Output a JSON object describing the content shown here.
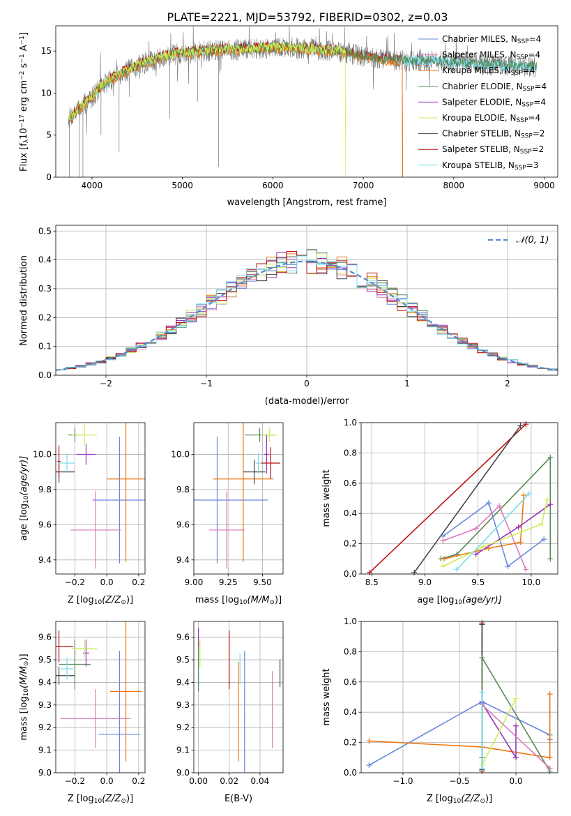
{
  "figure": {
    "title": "PLATE=2221, MJD=53792, FIBERID=0302, z=0.03"
  },
  "colors": {
    "chabrier_miles": "#6688dd",
    "salpeter_miles": "#dd77bb",
    "kroupa_miles": "#ee7711",
    "chabrier_elodie": "#558855",
    "salpeter_elodie": "#9933bb",
    "kroupa_elodie": "#ccee55",
    "chabrier_stelib": "#444444",
    "salpeter_stelib": "#bb1111",
    "kroupa_stelib": "#77ddee",
    "gauss": "#5588cc"
  },
  "chart_data": [
    {
      "type": "line",
      "xlabel": "wavelength [Angstrom, rest frame]",
      "ylabel": "Flux [f",
      "ylabel_sub": "λ",
      "ylabel_rest": "10",
      "ylabel_exp": "−17",
      "ylabel_tail": " erg cm",
      "ylabel_exp2": "−2",
      "ylabel_tail2": " s",
      "ylabel_exp3": "−1",
      "ylabel_tail3": " A",
      "ylabel_exp4": "−1",
      "ylabel_end": "]",
      "xlim": [
        3600,
        9150
      ],
      "ylim": [
        0,
        18
      ],
      "xticks": [
        "4000",
        "5000",
        "6000",
        "7000",
        "8000",
        "9000"
      ],
      "yticks": [
        "0",
        "5",
        "10",
        "15"
      ],
      "legend": [
        {
          "text": "Chabrier MILES, N",
          "sub": "SSP",
          "tail": "=4"
        },
        {
          "text": "Salpeter MILES, N",
          "sub": "SSP",
          "tail": "=4"
        },
        {
          "text": "Kroupa MILES, N",
          "sub": "SSP",
          "tail": "=4"
        },
        {
          "text": "Chabrier ELODIE, N",
          "sub": "SSP",
          "tail": "=4"
        },
        {
          "text": "Salpeter ELODIE, N",
          "sub": "SSP",
          "tail": "=4"
        },
        {
          "text": "Kroupa ELODIE, N",
          "sub": "SSP",
          "tail": "=4"
        },
        {
          "text": "Chabrier STELIB, N",
          "sub": "SSP",
          "tail": "=2"
        },
        {
          "text": "Salpeter STELIB, N",
          "sub": "SSP",
          "tail": "=2"
        },
        {
          "text": "Kroupa STELIB, N",
          "sub": "SSP",
          "tail": "=3"
        }
      ],
      "spectrum_anchors": {
        "x": [
          3740,
          3800,
          3900,
          4000,
          4100,
          4300,
          4500,
          4700,
          4900,
          5100,
          5300,
          5500,
          5700,
          5900,
          6100,
          6300,
          6500,
          6700,
          6900,
          7100,
          7300,
          7500,
          7700,
          7900,
          8100,
          8300,
          8500,
          8700,
          8900
        ],
        "y": [
          7,
          7.5,
          8.5,
          9.5,
          10.8,
          12.2,
          13.2,
          14.0,
          14.6,
          14.8,
          15.0,
          15.1,
          15.2,
          15.3,
          15.4,
          15.3,
          15.1,
          15.0,
          14.6,
          14.2,
          13.9,
          13.8,
          13.9,
          13.7,
          13.5,
          13.4,
          13.3,
          13.2,
          13.1
        ]
      },
      "data_range": {
        "start": 3740,
        "end": 8920
      },
      "kroupa_elodie_cutoff": 6800,
      "chabrier_stelib_cutoff": 6800,
      "kroupa_miles_cutoff": 7430,
      "salpeter_stelib_cutoff": 7430
    },
    {
      "type": "histogram",
      "xlabel": "(data-model)/error",
      "ylabel": "Normed distribution",
      "xlim": [
        -2.5,
        2.5
      ],
      "ylim": [
        0,
        0.52
      ],
      "xticks": [
        "−2",
        "−1",
        "0",
        "1",
        "2"
      ],
      "yticks": [
        "0.0",
        "0.1",
        "0.2",
        "0.3",
        "0.4",
        "0.5"
      ],
      "legend_label": "𝒩(0, 1)",
      "bin_width": 0.1,
      "peak": 0.395,
      "sigma": 1.0
    },
    {
      "type": "errorbar",
      "xlabel": "Z [log",
      "xlabel_sub": "10",
      "xlabel_tail": "(Z/Z",
      "xlabel_sub2": "⊙",
      "xlabel_end": ")]",
      "ylabel": "age  [log",
      "ylabel_sub": "10",
      "ylabel_tail": "(age/yr)]",
      "xlim": [
        -0.32,
        0.24
      ],
      "ylim": [
        9.32,
        10.18
      ],
      "xticks": [
        "−0.2",
        "0.0",
        "0.2"
      ],
      "xtick_values": [
        -0.2,
        0.0,
        0.2
      ],
      "yticks": [
        "9.4",
        "9.6",
        "9.8",
        "10.0"
      ],
      "ytick_values": [
        9.4,
        9.6,
        9.8,
        10.0
      ],
      "points": [
        {
          "series": "chabrier_miles",
          "x": 0.08,
          "y": 9.74,
          "xerr": 0.17,
          "yerr": 0.36
        },
        {
          "series": "salpeter_miles",
          "x": -0.07,
          "y": 9.57,
          "xerr": 0.16,
          "yerr": 0.22
        },
        {
          "series": "kroupa_miles",
          "x": 0.12,
          "y": 9.86,
          "xerr": 0.12,
          "yerr": 0.47
        },
        {
          "series": "chabrier_elodie",
          "x": -0.2,
          "y": 10.11,
          "xerr": 0.04,
          "yerr": 0.04
        },
        {
          "series": "salpeter_elodie",
          "x": -0.13,
          "y": 10.0,
          "xerr": 0.06,
          "yerr": 0.06
        },
        {
          "series": "kroupa_elodie",
          "x": -0.14,
          "y": 10.11,
          "xerr": 0.08,
          "yerr": 0.06
        },
        {
          "series": "chabrier_stelib",
          "x": -0.3,
          "y": 9.9,
          "xerr": 0.1,
          "yerr": 0.06
        },
        {
          "series": "salpeter_stelib",
          "x": -0.3,
          "y": 9.96,
          "xerr": 0.01,
          "yerr": 0.09
        },
        {
          "series": "kroupa_stelib",
          "x": -0.25,
          "y": 9.95,
          "xerr": 0.05,
          "yerr": 0.05
        }
      ]
    },
    {
      "type": "errorbar",
      "xlabel": "mass [log",
      "xlabel_sub": "10",
      "xlabel_tail": "(M/M",
      "xlabel_sub2": "⊙",
      "xlabel_end": ")]",
      "xlim": [
        9.0,
        9.65
      ],
      "ylim": [
        9.32,
        10.18
      ],
      "xticks": [
        "9.00",
        "9.25",
        "9.50"
      ],
      "xtick_values": [
        9.0,
        9.25,
        9.5
      ],
      "yticks": [
        "9.4",
        "9.6",
        "9.8",
        "10.0"
      ],
      "ytick_values": [
        9.4,
        9.6,
        9.8,
        10.0
      ],
      "points": [
        {
          "series": "chabrier_miles",
          "x": 9.17,
          "y": 9.74,
          "xerr": 0.37,
          "yerr": 0.36
        },
        {
          "series": "salpeter_miles",
          "x": 9.24,
          "y": 9.57,
          "xerr": 0.13,
          "yerr": 0.22
        },
        {
          "series": "kroupa_miles",
          "x": 9.36,
          "y": 9.86,
          "xerr": 0.22,
          "yerr": 0.47
        },
        {
          "series": "chabrier_elodie",
          "x": 9.48,
          "y": 10.11,
          "xerr": 0.11,
          "yerr": 0.04
        },
        {
          "series": "salpeter_elodie",
          "x": 9.53,
          "y": 10.0,
          "xerr": 0.02,
          "yerr": 0.11
        },
        {
          "series": "kroupa_elodie",
          "x": 9.55,
          "y": 10.11,
          "xerr": 0.06,
          "yerr": 0.04
        },
        {
          "series": "chabrier_stelib",
          "x": 9.44,
          "y": 9.9,
          "xerr": 0.08,
          "yerr": 0.07
        },
        {
          "series": "salpeter_stelib",
          "x": 9.56,
          "y": 9.95,
          "xerr": 0.07,
          "yerr": 0.09
        },
        {
          "series": "kroupa_stelib",
          "x": 9.47,
          "y": 9.95,
          "xerr": 0.02,
          "yerr": 0.06
        }
      ]
    },
    {
      "type": "line",
      "xlabel": "age  [log",
      "xlabel_sub": "10",
      "xlabel_tail": "(age/yr)]",
      "ylabel": "mass weight",
      "xlim": [
        8.4,
        10.25
      ],
      "ylim": [
        0,
        1
      ],
      "xticks": [
        "8.5",
        "9.0",
        "9.5",
        "10.0"
      ],
      "xtick_values": [
        8.5,
        9.0,
        9.5,
        10.0
      ],
      "yticks": [
        "0.0",
        "0.2",
        "0.4",
        "0.6",
        "0.8",
        "1.0"
      ],
      "ytick_values": [
        0,
        0.2,
        0.4,
        0.6,
        0.8,
        1.0
      ],
      "series": [
        {
          "key": "salpeter_stelib",
          "x": [
            8.48,
            9.95
          ],
          "y": [
            0.01,
            0.99
          ]
        },
        {
          "key": "chabrier_stelib",
          "x": [
            8.9,
            9.9
          ],
          "y": [
            0.01,
            0.98
          ]
        },
        {
          "key": "chabrier_elodie",
          "x": [
            9.15,
            9.3,
            10.18,
            10.18
          ],
          "y": [
            0.1,
            0.13,
            0.77,
            0.1
          ]
        },
        {
          "key": "chabrier_miles",
          "x": [
            9.17,
            9.6,
            9.78,
            10.12
          ],
          "y": [
            0.25,
            0.47,
            0.05,
            0.23
          ]
        },
        {
          "key": "salpeter_miles",
          "x": [
            9.17,
            9.48,
            9.7,
            9.95
          ],
          "y": [
            0.22,
            0.3,
            0.45,
            0.03
          ]
        },
        {
          "key": "kroupa_miles",
          "x": [
            9.18,
            9.6,
            9.9,
            9.93
          ],
          "y": [
            0.1,
            0.17,
            0.21,
            0.52
          ]
        },
        {
          "key": "salpeter_elodie",
          "x": [
            9.48,
            9.88,
            10.18
          ],
          "y": [
            0.13,
            0.31,
            0.46
          ]
        },
        {
          "key": "kroupa_elodie",
          "x": [
            9.17,
            9.55,
            10.1,
            10.15
          ],
          "y": [
            0.05,
            0.18,
            0.33,
            0.49
          ]
        },
        {
          "key": "kroupa_stelib",
          "x": [
            9.3,
            9.98
          ],
          "y": [
            0.03,
            0.53
          ]
        }
      ]
    },
    {
      "type": "errorbar",
      "xlabel": "Z [log",
      "xlabel_sub": "10",
      "xlabel_tail": "(Z/Z",
      "xlabel_sub2": "⊙",
      "xlabel_end": ")]",
      "ylabel": "mass [log",
      "ylabel_sub": "10",
      "ylabel_tail": "(M/M",
      "ylabel_sub2": "⊙",
      "ylabel_end": ")]",
      "xlim": [
        -0.32,
        0.24
      ],
      "ylim": [
        9.0,
        9.67
      ],
      "xticks": [
        "−0.2",
        "0.0",
        "0.2"
      ],
      "xtick_values": [
        -0.2,
        0.0,
        0.2
      ],
      "yticks": [
        "9.0",
        "9.1",
        "9.2",
        "9.3",
        "9.4",
        "9.5",
        "9.6"
      ],
      "ytick_values": [
        9.0,
        9.1,
        9.2,
        9.3,
        9.4,
        9.5,
        9.6
      ],
      "points": [
        {
          "series": "chabrier_miles",
          "x": 0.08,
          "y": 9.17,
          "xerr": 0.13,
          "yerr": 0.37
        },
        {
          "series": "salpeter_miles",
          "x": -0.07,
          "y": 9.24,
          "xerr": 0.22,
          "yerr": 0.13
        },
        {
          "series": "kroupa_miles",
          "x": 0.12,
          "y": 9.36,
          "xerr": 0.1,
          "yerr": 0.31
        },
        {
          "series": "chabrier_elodie",
          "x": -0.2,
          "y": 9.48,
          "xerr": 0.1,
          "yerr": 0.11
        },
        {
          "series": "salpeter_elodie",
          "x": -0.13,
          "y": 9.53,
          "xerr": 0.02,
          "yerr": 0.06
        },
        {
          "series": "kroupa_elodie",
          "x": -0.14,
          "y": 9.55,
          "xerr": 0.08,
          "yerr": 0.04
        },
        {
          "series": "chabrier_stelib",
          "x": -0.3,
          "y": 9.43,
          "xerr": 0.1,
          "yerr": 0.04
        },
        {
          "series": "salpeter_stelib",
          "x": -0.3,
          "y": 9.56,
          "xerr": 0.09,
          "yerr": 0.07
        },
        {
          "series": "kroupa_stelib",
          "x": -0.25,
          "y": 9.46,
          "xerr": 0.04,
          "yerr": 0.05
        }
      ]
    },
    {
      "type": "errorbar",
      "xlabel": "E(B-V)",
      "xlim": [
        -0.003,
        0.055
      ],
      "ylim": [
        9.0,
        9.67
      ],
      "xticks": [
        "0.00",
        "0.02",
        "0.04"
      ],
      "xtick_values": [
        0.0,
        0.02,
        0.04
      ],
      "yticks": [
        "9.0",
        "9.1",
        "9.2",
        "9.3",
        "9.4",
        "9.5",
        "9.6"
      ],
      "ytick_values": [
        9.0,
        9.1,
        9.2,
        9.3,
        9.4,
        9.5,
        9.6
      ],
      "points": [
        {
          "series": "chabrier_miles",
          "x": 0.03,
          "y": 9.17,
          "xerr": 0,
          "yerr": 0.37
        },
        {
          "series": "salpeter_miles",
          "x": 0.048,
          "y": 9.28,
          "xerr": 0,
          "yerr": 0.17
        },
        {
          "series": "kroupa_miles",
          "x": 0.026,
          "y": 9.27,
          "xerr": 0,
          "yerr": 0.22
        },
        {
          "series": "chabrier_elodie",
          "x": 0.0,
          "y": 9.47,
          "xerr": 0,
          "yerr": 0.11
        },
        {
          "series": "salpeter_elodie",
          "x": 0.0,
          "y": 9.6,
          "xerr": 0,
          "yerr": 0.04
        },
        {
          "series": "kroupa_elodie",
          "x": 0.001,
          "y": 9.53,
          "xerr": 0,
          "yerr": 0.06
        },
        {
          "series": "chabrier_stelib",
          "x": 0.053,
          "y": 9.44,
          "xerr": 0,
          "yerr": 0.06
        },
        {
          "series": "salpeter_stelib",
          "x": 0.02,
          "y": 9.5,
          "xerr": 0,
          "yerr": 0.13
        },
        {
          "series": "kroupa_stelib",
          "x": 0.027,
          "y": 9.46,
          "xerr": 0,
          "yerr": 0.07
        }
      ]
    },
    {
      "type": "line",
      "xlabel": "Z [log",
      "xlabel_sub": "10",
      "xlabel_tail": "(Z/Z",
      "xlabel_sub2": "⊙",
      "xlabel_end": ")]",
      "ylabel": "mass weight",
      "xlim": [
        -1.37,
        0.37
      ],
      "ylim": [
        0,
        1
      ],
      "xticks": [
        "−1.0",
        "−0.5",
        "0.0"
      ],
      "xtick_values": [
        -1.0,
        -0.5,
        0.0
      ],
      "yticks": [
        "0.0",
        "0.2",
        "0.4",
        "0.6",
        "0.8",
        "1.0"
      ],
      "ytick_values": [
        0,
        0.2,
        0.4,
        0.6,
        0.8,
        1.0
      ],
      "series": [
        {
          "key": "chabrier_miles",
          "x": [
            -1.3,
            -0.3,
            0.3,
            0.3
          ],
          "y": [
            0.05,
            0.47,
            0.25,
            0.22
          ]
        },
        {
          "key": "kroupa_miles",
          "x": [
            -1.3,
            -0.3,
            0.3,
            0.3
          ],
          "y": [
            0.21,
            0.17,
            0.1,
            0.52
          ]
        },
        {
          "key": "salpeter_stelib",
          "x": [
            -0.3,
            -0.3
          ],
          "y": [
            0.01,
            0.99
          ]
        },
        {
          "key": "chabrier_stelib",
          "x": [
            -0.3,
            -0.3
          ],
          "y": [
            0.02,
            0.98
          ]
        },
        {
          "key": "chabrier_elodie",
          "x": [
            -0.3,
            -0.3,
            0.3
          ],
          "y": [
            0.1,
            0.76,
            0.01
          ]
        },
        {
          "key": "salpeter_elodie",
          "x": [
            -0.3,
            0.0,
            0.0
          ],
          "y": [
            0.46,
            0.1,
            0.31
          ]
        },
        {
          "key": "kroupa_elodie",
          "x": [
            -0.3,
            0.0
          ],
          "y": [
            0.05,
            0.49
          ]
        },
        {
          "key": "salpeter_miles",
          "x": [
            -0.3,
            0.3
          ],
          "y": [
            0.45,
            0.03
          ]
        },
        {
          "key": "kroupa_stelib",
          "x": [
            -0.3,
            -0.3
          ],
          "y": [
            0.03,
            0.53
          ]
        }
      ]
    }
  ]
}
